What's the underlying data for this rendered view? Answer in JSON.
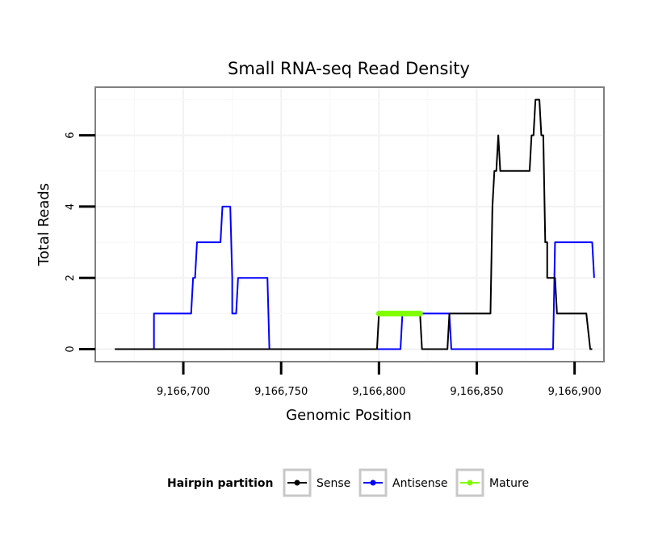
{
  "chart_data": {
    "type": "line",
    "title": "Small RNA-seq Read Density",
    "xlabel": "Genomic Position",
    "ylabel": "Total Reads",
    "xlim": [
      9166655,
      9166915
    ],
    "ylim": [
      -0.35,
      7.35
    ],
    "xticks": [
      9166700,
      9166750,
      9166800,
      9166850,
      9166900
    ],
    "xtick_labels": [
      "9,166,700",
      "9,166,750",
      "9,166,800",
      "9,166,850",
      "9,166,900"
    ],
    "yticks": [
      0,
      2,
      4,
      6
    ],
    "ytick_labels": [
      "0",
      "2",
      "4",
      "6"
    ],
    "grid": true,
    "legend": {
      "title": "Hairpin partition",
      "position": "bottom",
      "entries": [
        "Sense",
        "Antisense",
        "Mature"
      ]
    },
    "series": [
      {
        "name": "Antisense",
        "color": "#0000ff",
        "x": [
          9166685,
          9166685,
          9166686,
          9166704,
          9166705,
          9166706,
          9166707,
          9166719,
          9166720,
          9166724,
          9166725,
          9166725,
          9166727,
          9166728,
          9166743,
          9166744,
          9166799,
          9166811,
          9166812,
          9166836,
          9166837,
          9166889,
          9166890,
          9166909,
          9166910
        ],
        "y": [
          0,
          1,
          1,
          1,
          2,
          2,
          3,
          3,
          4,
          4,
          2,
          1,
          1,
          2,
          2,
          0,
          0,
          0,
          1,
          1,
          0,
          0,
          3,
          3,
          2
        ]
      },
      {
        "name": "Sense",
        "color": "#000000",
        "x": [
          9166665,
          9166799,
          9166800,
          9166821,
          9166822,
          9166835,
          9166836,
          9166857,
          9166858,
          9166859,
          9166860,
          9166861,
          9166862,
          9166877,
          9166878,
          9166879,
          9166880,
          9166882,
          9166883,
          9166884,
          9166885,
          9166886,
          9166886,
          9166887,
          9166890,
          9166891,
          9166906,
          9166908,
          9166909
        ],
        "y": [
          0,
          0,
          1,
          1,
          0,
          0,
          1,
          1,
          4,
          5,
          5,
          6,
          5,
          5,
          6,
          6,
          7,
          7,
          6,
          6,
          3,
          3,
          2,
          2,
          2,
          1,
          1,
          0,
          0
        ]
      },
      {
        "name": "Mature",
        "color": "#7fff00",
        "x": [
          9166800,
          9166821
        ],
        "y": [
          1,
          1
        ]
      }
    ]
  }
}
